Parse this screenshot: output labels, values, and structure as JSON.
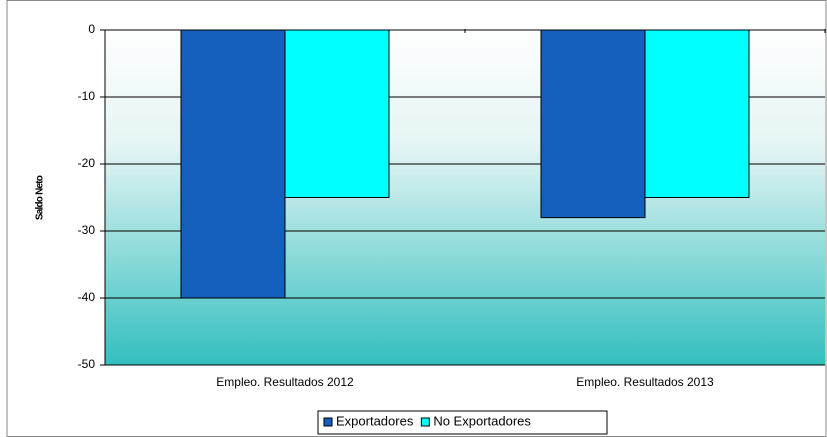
{
  "chart_data": {
    "type": "bar",
    "ylabel": "Saldo Neto",
    "categories": [
      "Empleo. Resultados 2012",
      "Empleo. Resultados 2013"
    ],
    "series": [
      {
        "name": "Exportadores",
        "color": "#1560bd",
        "values": [
          -40,
          -28
        ]
      },
      {
        "name": "No Exportadores",
        "color": "#00ffff",
        "values": [
          -25,
          -25
        ]
      }
    ],
    "ylim": [
      -50,
      0
    ],
    "yticks": [
      -50,
      -40,
      -30,
      -20,
      -10,
      0
    ],
    "grid": true,
    "legend": "bottom"
  }
}
